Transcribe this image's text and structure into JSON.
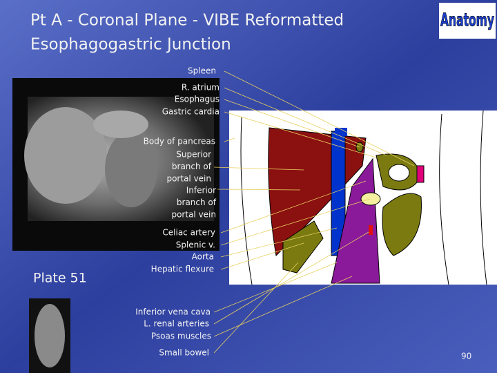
{
  "header": {
    "title_lines": [
      "Pt A - Coronal Plane - VIBE Reformatted",
      "Esophagogastric Junction"
    ],
    "logo": "Anatomy"
  },
  "plate": "Plate 51",
  "page_number": "90",
  "labels": [
    [
      "Spleen"
    ],
    [
      "R. atrium"
    ],
    [
      "Esophagus"
    ],
    [
      "Gastric cardia"
    ],
    [
      "Body of pancreas"
    ],
    [
      "Superior",
      "branch of",
      "portal vein"
    ],
    [
      "Inferior",
      "branch of",
      "portal vein"
    ],
    [
      "Celiac artery"
    ],
    [
      "Splenic v."
    ],
    [
      "Aorta"
    ],
    [
      "Hepatic flexure"
    ],
    [
      "Inferior vena cava"
    ],
    [
      "L. renal arteries"
    ],
    [
      "Psoas muscles"
    ],
    [
      "Small bowel"
    ]
  ]
}
